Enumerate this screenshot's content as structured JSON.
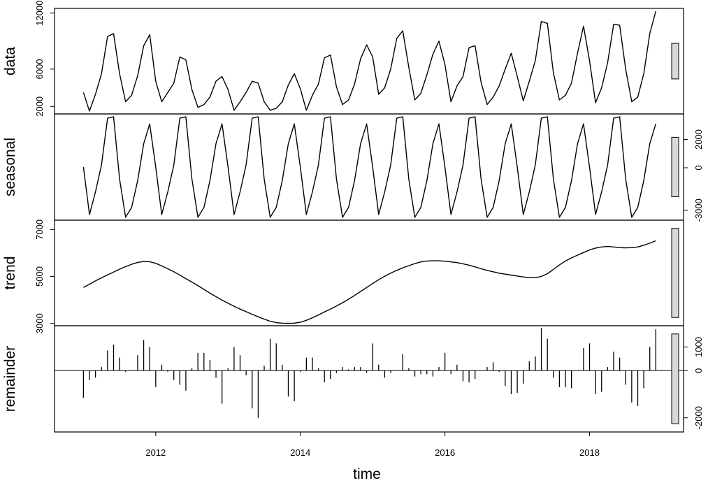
{
  "chart_data": {
    "type": "line",
    "xlabel": "time",
    "x": [
      2011.0,
      2011.0833,
      2011.1667,
      2011.25,
      2011.3333,
      2011.4167,
      2011.5,
      2011.5833,
      2011.6667,
      2011.75,
      2011.8333,
      2011.9167,
      2012.0,
      2012.0833,
      2012.1667,
      2012.25,
      2012.3333,
      2012.4167,
      2012.5,
      2012.5833,
      2012.6667,
      2012.75,
      2012.8333,
      2012.9167,
      2013.0,
      2013.0833,
      2013.1667,
      2013.25,
      2013.3333,
      2013.4167,
      2013.5,
      2013.5833,
      2013.6667,
      2013.75,
      2013.8333,
      2013.9167,
      2014.0,
      2014.0833,
      2014.1667,
      2014.25,
      2014.3333,
      2014.4167,
      2014.5,
      2014.5833,
      2014.6667,
      2014.75,
      2014.8333,
      2014.9167,
      2015.0,
      2015.0833,
      2015.1667,
      2015.25,
      2015.3333,
      2015.4167,
      2015.5,
      2015.5833,
      2015.6667,
      2015.75,
      2015.8333,
      2015.9167,
      2016.0,
      2016.0833,
      2016.1667,
      2016.25,
      2016.3333,
      2016.4167,
      2016.5,
      2016.5833,
      2016.6667,
      2016.75,
      2016.8333,
      2016.9167,
      2017.0,
      2017.0833,
      2017.1667,
      2017.25,
      2017.3333,
      2017.4167,
      2017.5,
      2017.5833,
      2017.6667,
      2017.75,
      2017.8333,
      2017.9167,
      2018.0,
      2018.0833,
      2018.1667,
      2018.25,
      2018.3333,
      2018.4167,
      2018.5,
      2018.5833,
      2018.6667,
      2018.75,
      2018.8333,
      2018.9167
    ],
    "xlim": [
      2010.6,
      2019.3
    ],
    "xticks": [
      2012,
      2014,
      2016,
      2018
    ],
    "xtick_labels": [
      "2012",
      "2014",
      "2016",
      "2018"
    ],
    "panels": [
      {
        "name": "data",
        "ylabel": "data",
        "ylim": [
          1200,
          12500
        ],
        "yticks": [
          2000,
          6000,
          12000
        ],
        "ytick_labels": [
          "2000",
          "6000",
          "12000"
        ],
        "axis_side": "left",
        "bar_range": 3800,
        "values": [
          3500,
          1500,
          3300,
          5500,
          9500,
          9800,
          5500,
          2500,
          3200,
          5300,
          8500,
          9700,
          4700,
          2500,
          3500,
          4500,
          7300,
          7000,
          3800,
          1900,
          2200,
          3000,
          4700,
          5200,
          3800,
          1600,
          2500,
          3500,
          4700,
          4500,
          2500,
          1600,
          1800,
          2500,
          4300,
          5500,
          3900,
          1600,
          3200,
          4400,
          7200,
          7500,
          4100,
          2200,
          2700,
          4400,
          7100,
          8600,
          7300,
          3300,
          4000,
          6000,
          9300,
          10100,
          6200,
          2700,
          3400,
          5400,
          7600,
          9000,
          6500,
          2500,
          4200,
          5200,
          8300,
          8500,
          4600,
          2200,
          3000,
          4200,
          6000,
          7700,
          5200,
          2600,
          4700,
          6900,
          11100,
          10900,
          5600,
          2700,
          3200,
          4500,
          7700,
          10600,
          6900,
          2400,
          4000,
          6700,
          10800,
          10700,
          6000,
          2500,
          3000,
          5500,
          9800,
          12200
        ]
      },
      {
        "name": "seasonal",
        "ylabel": "seasonal",
        "ylim": [
          -3700,
          3800
        ],
        "yticks": [
          -3000,
          0,
          2000
        ],
        "ytick_labels": [
          "-3000",
          "0",
          "2000"
        ],
        "axis_side": "right",
        "bar_range": 4200,
        "values": [
          50,
          -3300,
          -1700,
          200,
          3500,
          3600,
          -800,
          -3500,
          -2800,
          -900,
          1700,
          3100,
          50,
          -3300,
          -1700,
          200,
          3500,
          3600,
          -800,
          -3500,
          -2800,
          -900,
          1700,
          3100,
          50,
          -3300,
          -1700,
          200,
          3500,
          3600,
          -800,
          -3500,
          -2800,
          -900,
          1700,
          3100,
          50,
          -3300,
          -1700,
          200,
          3500,
          3600,
          -800,
          -3500,
          -2800,
          -900,
          1700,
          3100,
          50,
          -3300,
          -1700,
          200,
          3500,
          3600,
          -800,
          -3500,
          -2800,
          -900,
          1700,
          3100,
          50,
          -3300,
          -1700,
          200,
          3500,
          3600,
          -800,
          -3500,
          -2800,
          -900,
          1700,
          3100,
          50,
          -3300,
          -1700,
          200,
          3500,
          3600,
          -800,
          -3500,
          -2800,
          -900,
          1700,
          3100,
          50,
          -3300,
          -1700,
          200,
          3500,
          3600,
          -800,
          -3500,
          -2800,
          -900,
          1700,
          3100
        ]
      },
      {
        "name": "trend",
        "ylabel": "trend",
        "ylim": [
          2900,
          7400
        ],
        "yticks": [
          3000,
          5000,
          7000
        ],
        "ytick_labels": [
          "3000",
          "5000",
          "7000"
        ],
        "axis_side": "left",
        "bar_range": 3800,
        "values": [
          4530,
          4670,
          4810,
          4940,
          5070,
          5190,
          5310,
          5420,
          5520,
          5600,
          5640,
          5630,
          5560,
          5450,
          5330,
          5200,
          5060,
          4910,
          4760,
          4610,
          4450,
          4290,
          4140,
          3990,
          3860,
          3730,
          3610,
          3500,
          3390,
          3280,
          3180,
          3090,
          3030,
          3010,
          3000,
          3010,
          3050,
          3130,
          3240,
          3360,
          3490,
          3610,
          3740,
          3880,
          4030,
          4190,
          4360,
          4530,
          4700,
          4860,
          5010,
          5140,
          5260,
          5370,
          5460,
          5550,
          5620,
          5660,
          5670,
          5670,
          5650,
          5620,
          5590,
          5540,
          5480,
          5410,
          5330,
          5260,
          5200,
          5140,
          5100,
          5060,
          5020,
          4980,
          4950,
          4950,
          5000,
          5120,
          5300,
          5490,
          5660,
          5790,
          5910,
          6020,
          6130,
          6210,
          6260,
          6280,
          6260,
          6230,
          6220,
          6230,
          6260,
          6330,
          6420,
          6520
        ]
      },
      {
        "name": "remainder",
        "ylabel": "remainder",
        "ylim": [
          -2600,
          1900
        ],
        "yticks": [
          -2000,
          0,
          1000
        ],
        "ytick_labels": [
          "-2000",
          "0",
          "1000"
        ],
        "axis_side": "right",
        "bar_range": 3800,
        "values": [
          -1150,
          -400,
          -300,
          150,
          850,
          1100,
          550,
          -50,
          0,
          650,
          1300,
          1000,
          -700,
          250,
          -50,
          -400,
          -600,
          -850,
          100,
          750,
          750,
          450,
          -300,
          -1400,
          100,
          1000,
          650,
          -200,
          -1600,
          -2000,
          200,
          1350,
          1150,
          250,
          -1100,
          -1300,
          -50,
          550,
          550,
          100,
          -500,
          -350,
          -100,
          150,
          50,
          150,
          150,
          -100,
          1150,
          250,
          -300,
          -100,
          0,
          700,
          100,
          -250,
          -150,
          -150,
          -250,
          150,
          750,
          -150,
          250,
          -450,
          -500,
          -350,
          0,
          150,
          350,
          -50,
          -650,
          -1000,
          -950,
          -550,
          400,
          600,
          1800,
          1350,
          -300,
          -700,
          -700,
          -750,
          0,
          950,
          1150,
          -1000,
          -900,
          150,
          800,
          550,
          -600,
          -1350,
          -1500,
          -750,
          1000,
          1750
        ]
      }
    ]
  }
}
